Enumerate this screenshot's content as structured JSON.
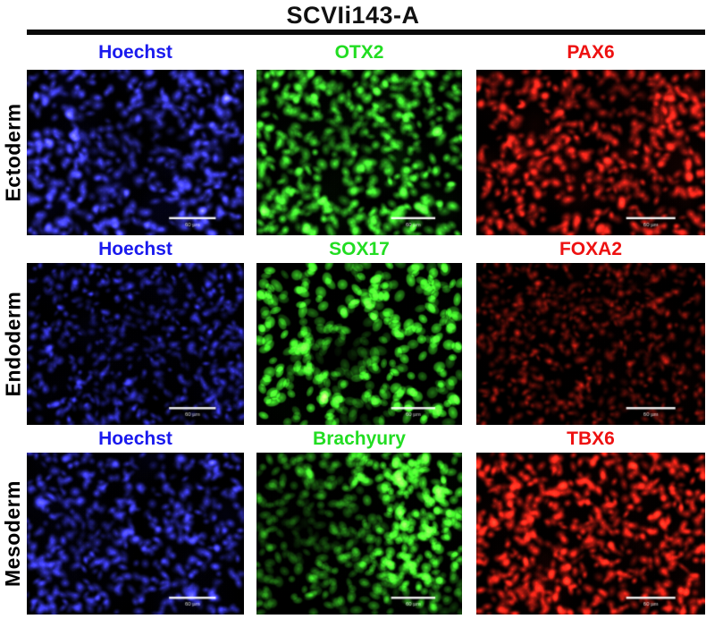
{
  "figure": {
    "title": "SCVIi143-A",
    "scale_bar_label": "60 µm",
    "rows": [
      {
        "germ_layer": "Ectoderm",
        "panels": [
          {
            "marker": "Hoechst",
            "label_color": "#1a1aee",
            "cell_color": [
              70,
              70,
              255
            ],
            "haze_color": [
              25,
              25,
              170
            ],
            "count": 560,
            "size": [
              5,
              9
            ],
            "brightness": 0.95,
            "haze": 0.3,
            "sharp": 0.15,
            "dark": [
              [
                0.53,
                0.42,
                0.3,
                0.78
              ]
            ],
            "boost": [],
            "seed": 101
          },
          {
            "marker": "OTX2",
            "label_color": "#22dd22",
            "cell_color": [
              70,
              245,
              50
            ],
            "haze_color": [
              20,
              120,
              15
            ],
            "count": 520,
            "size": [
              5,
              9
            ],
            "brightness": 0.95,
            "haze": 0.22,
            "sharp": 0.3,
            "dark": [
              [
                0.5,
                0.42,
                0.22,
                0.65
              ]
            ],
            "boost": [],
            "seed": 202
          },
          {
            "marker": "PAX6",
            "label_color": "#ee1111",
            "cell_color": [
              255,
              40,
              28
            ],
            "haze_color": [
              140,
              15,
              10
            ],
            "count": 560,
            "size": [
              5,
              9
            ],
            "brightness": 0.9,
            "haze": 0.28,
            "sharp": 0.15,
            "dark": [
              [
                0.62,
                0.2,
                0.26,
                0.7
              ]
            ],
            "boost": [],
            "seed": 303
          }
        ]
      },
      {
        "germ_layer": "Endoderm",
        "panels": [
          {
            "marker": "Hoechst",
            "label_color": "#1a1aee",
            "cell_color": [
              60,
              60,
              245
            ],
            "haze_color": [
              20,
              20,
              150
            ],
            "count": 620,
            "size": [
              4,
              7
            ],
            "brightness": 0.7,
            "haze": 0.2,
            "sharp": 0.2,
            "dark": [
              [
                0.45,
                0.48,
                0.28,
                0.45
              ]
            ],
            "boost": [],
            "seed": 404
          },
          {
            "marker": "SOX17",
            "label_color": "#22dd22",
            "cell_color": [
              70,
              250,
              45
            ],
            "haze_color": [
              15,
              90,
              12
            ],
            "count": 360,
            "size": [
              5,
              8
            ],
            "brightness": 1.0,
            "haze": 0.06,
            "sharp": 0.75,
            "dark": [
              [
                0.44,
                0.55,
                0.3,
                0.96
              ],
              [
                0.52,
                0.97,
                0.22,
                0.85
              ]
            ],
            "boost": [],
            "seed": 505
          },
          {
            "marker": "FOXA2",
            "label_color": "#ee1111",
            "cell_color": [
              235,
              35,
              22
            ],
            "haze_color": [
              110,
              12,
              8
            ],
            "count": 680,
            "size": [
              4,
              7
            ],
            "brightness": 0.5,
            "haze": 0.16,
            "sharp": 0.15,
            "dark": [
              [
                0.3,
                0.3,
                0.22,
                0.25
              ]
            ],
            "boost": [],
            "seed": 606
          }
        ]
      },
      {
        "germ_layer": "Mesoderm",
        "panels": [
          {
            "marker": "Hoechst",
            "label_color": "#1a1aee",
            "cell_color": [
              65,
              65,
              250
            ],
            "haze_color": [
              22,
              22,
              160
            ],
            "count": 580,
            "size": [
              5,
              8
            ],
            "brightness": 0.85,
            "haze": 0.25,
            "sharp": 0.18,
            "dark": [
              [
                0.3,
                0.42,
                0.24,
                0.55
              ],
              [
                0.7,
                0.18,
                0.18,
                0.35
              ]
            ],
            "boost": [],
            "seed": 707
          },
          {
            "marker": "Brachyury",
            "label_color": "#22dd22",
            "cell_color": [
              70,
              245,
              45
            ],
            "haze_color": [
              15,
              95,
              12
            ],
            "count": 420,
            "size": [
              5,
              8
            ],
            "brightness": 0.55,
            "haze": 0.1,
            "sharp": 0.5,
            "dark": [
              [
                0.22,
                0.45,
                0.3,
                0.7
              ]
            ],
            "boost": [
              [
                0.85,
                0.12,
                0.45,
                1.9
              ],
              [
                0.82,
                0.6,
                0.33,
                1.4
              ]
            ],
            "seed": 808
          },
          {
            "marker": "TBX6",
            "label_color": "#ee1111",
            "cell_color": [
              250,
              38,
              25
            ],
            "haze_color": [
              130,
              14,
              9
            ],
            "count": 720,
            "size": [
              5,
              8
            ],
            "brightness": 0.95,
            "haze": 0.3,
            "sharp": 0.15,
            "dark": [],
            "boost": [],
            "seed": 909
          }
        ]
      }
    ]
  }
}
